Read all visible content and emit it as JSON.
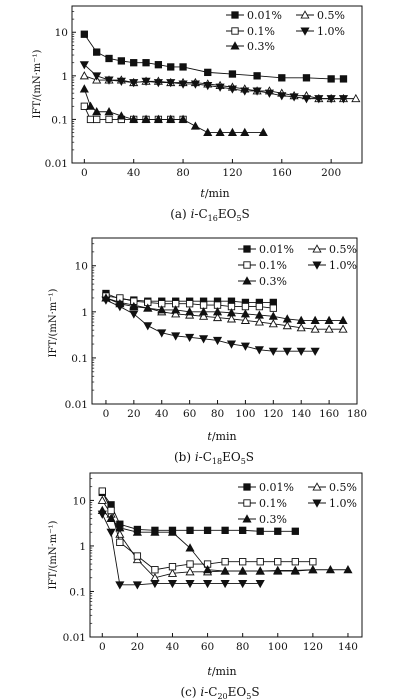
{
  "chart_data": [
    {
      "type": "scatter",
      "caption": "(a) i-C16EO5S",
      "caption_parts": {
        "prefix": "(a) ",
        "italic": "i",
        "mid": "-C",
        "sub1": "16",
        "mid2": "EO",
        "sub2": "5",
        "end": "S"
      },
      "xlabel_italic": "t",
      "xlabel_rest": "/min",
      "ylabel": "IFT/(mN·m⁻¹)",
      "y_scale": "log",
      "xlim": [
        -10,
        225
      ],
      "ylim": [
        0.01,
        40
      ],
      "x_ticks": [
        0,
        40,
        80,
        120,
        160,
        200
      ],
      "y_ticks": [
        0.01,
        0.1,
        1,
        10
      ],
      "y_tick_labels": [
        "0.01",
        "0.1",
        "1",
        "10"
      ],
      "series": [
        {
          "name": "0.01%",
          "marker": "square-filled",
          "x": [
            0,
            10,
            20,
            30,
            40,
            50,
            60,
            70,
            80,
            100,
            120,
            140,
            160,
            180,
            200,
            210
          ],
          "y": [
            9,
            3.5,
            2.5,
            2.2,
            2.0,
            2.0,
            1.8,
            1.6,
            1.6,
            1.2,
            1.1,
            1.0,
            0.9,
            0.9,
            0.85,
            0.85
          ]
        },
        {
          "name": "0.5%",
          "marker": "triangle-up-open",
          "x": [
            0,
            10,
            20,
            30,
            40,
            50,
            60,
            70,
            80,
            90,
            100,
            110,
            120,
            130,
            140,
            150,
            160,
            170,
            180,
            190,
            200,
            210,
            220
          ],
          "y": [
            1.0,
            0.8,
            0.8,
            0.8,
            0.7,
            0.75,
            0.75,
            0.7,
            0.7,
            0.7,
            0.65,
            0.6,
            0.55,
            0.5,
            0.45,
            0.45,
            0.4,
            0.35,
            0.35,
            0.3,
            0.3,
            0.3,
            0.3
          ]
        },
        {
          "name": "0.1%",
          "marker": "square-open",
          "x": [
            0,
            5,
            10,
            20,
            30,
            40,
            50,
            60,
            70,
            80
          ],
          "y": [
            0.2,
            0.1,
            0.1,
            0.1,
            0.1,
            0.1,
            0.1,
            0.1,
            0.1,
            0.1
          ]
        },
        {
          "name": "1.0%",
          "marker": "triangle-down-filled",
          "x": [
            0,
            10,
            20,
            30,
            40,
            50,
            60,
            70,
            80,
            90,
            100,
            110,
            120,
            130,
            140,
            150,
            160,
            170,
            180,
            190,
            200,
            210
          ],
          "y": [
            1.8,
            1.0,
            0.8,
            0.75,
            0.7,
            0.75,
            0.7,
            0.7,
            0.65,
            0.65,
            0.6,
            0.55,
            0.5,
            0.45,
            0.45,
            0.4,
            0.35,
            0.33,
            0.3,
            0.3,
            0.3,
            0.3
          ]
        },
        {
          "name": "0.3%",
          "marker": "triangle-up-filled",
          "x": [
            0,
            5,
            10,
            20,
            30,
            40,
            50,
            60,
            70,
            80,
            90,
            100,
            110,
            120,
            130,
            145
          ],
          "y": [
            0.5,
            0.2,
            0.15,
            0.15,
            0.12,
            0.1,
            0.1,
            0.1,
            0.1,
            0.1,
            0.07,
            0.05,
            0.05,
            0.05,
            0.05,
            0.05
          ]
        }
      ]
    },
    {
      "type": "scatter",
      "caption": "(b) i-C18EO5S",
      "caption_parts": {
        "prefix": "(b) ",
        "italic": "i",
        "mid": "-C",
        "sub1": "18",
        "mid2": "EO",
        "sub2": "5",
        "end": "S"
      },
      "xlabel_italic": "t",
      "xlabel_rest": "/min",
      "ylabel": "IFT/(mN·m⁻¹)",
      "y_scale": "log",
      "xlim": [
        -10,
        180
      ],
      "ylim": [
        0.01,
        40
      ],
      "x_ticks": [
        0,
        20,
        40,
        60,
        80,
        100,
        120,
        140,
        160,
        180
      ],
      "y_ticks": [
        0.01,
        0.1,
        1,
        10
      ],
      "y_tick_labels": [
        "0.01",
        "0.1",
        "1",
        "10"
      ],
      "series": [
        {
          "name": "0.01%",
          "marker": "square-filled",
          "x": [
            0,
            10,
            20,
            30,
            40,
            50,
            60,
            70,
            80,
            90,
            100,
            110,
            120
          ],
          "y": [
            2.5,
            1.9,
            1.8,
            1.7,
            1.7,
            1.7,
            1.7,
            1.7,
            1.7,
            1.7,
            1.6,
            1.6,
            1.6
          ]
        },
        {
          "name": "0.5%",
          "marker": "triangle-up-open",
          "x": [
            0,
            10,
            20,
            30,
            40,
            50,
            60,
            70,
            80,
            90,
            100,
            110,
            120,
            130,
            140,
            150,
            160,
            170
          ],
          "y": [
            2.0,
            1.6,
            1.4,
            1.2,
            1.0,
            0.9,
            0.85,
            0.8,
            0.75,
            0.7,
            0.65,
            0.6,
            0.55,
            0.5,
            0.45,
            0.42,
            0.42,
            0.42
          ]
        },
        {
          "name": "0.1%",
          "marker": "square-open",
          "x": [
            0,
            10,
            20,
            30,
            40,
            50,
            60,
            70,
            80,
            90,
            100,
            110,
            120
          ],
          "y": [
            2.2,
            2.0,
            1.7,
            1.6,
            1.5,
            1.5,
            1.5,
            1.4,
            1.4,
            1.3,
            1.3,
            1.3,
            1.2
          ]
        },
        {
          "name": "1.0%",
          "marker": "triangle-down-filled",
          "x": [
            0,
            10,
            20,
            30,
            40,
            50,
            60,
            70,
            80,
            90,
            100,
            110,
            120,
            130,
            140,
            150
          ],
          "y": [
            1.8,
            1.3,
            0.9,
            0.5,
            0.35,
            0.3,
            0.28,
            0.26,
            0.24,
            0.2,
            0.18,
            0.15,
            0.14,
            0.14,
            0.14,
            0.14
          ]
        },
        {
          "name": "0.3%",
          "marker": "triangle-up-filled",
          "x": [
            0,
            10,
            20,
            30,
            40,
            50,
            60,
            70,
            80,
            90,
            100,
            110,
            120,
            130,
            140,
            150,
            160,
            170
          ],
          "y": [
            2.0,
            1.5,
            1.3,
            1.2,
            1.1,
            1.1,
            1.0,
            1.0,
            1.0,
            0.95,
            0.9,
            0.85,
            0.8,
            0.7,
            0.65,
            0.65,
            0.65,
            0.65
          ]
        }
      ]
    },
    {
      "type": "scatter",
      "caption": "(c) i-C20EO5S",
      "caption_parts": {
        "prefix": "(c) ",
        "italic": "i",
        "mid": "-C",
        "sub1": "20",
        "mid2": "EO",
        "sub2": "5",
        "end": "S"
      },
      "xlabel_italic": "t",
      "xlabel_rest": "/min",
      "ylabel": "IFT/(mN·m⁻¹)",
      "y_scale": "log",
      "xlim": [
        -7,
        148
      ],
      "ylim": [
        0.01,
        40
      ],
      "x_ticks": [
        0,
        20,
        40,
        60,
        80,
        100,
        120,
        140
      ],
      "y_ticks": [
        0.01,
        0.1,
        1,
        10
      ],
      "y_tick_labels": [
        "0.01",
        "0.1",
        "1",
        "10"
      ],
      "series": [
        {
          "name": "0.01%",
          "marker": "square-filled",
          "x": [
            0,
            5,
            10,
            20,
            30,
            40,
            50,
            60,
            70,
            80,
            90,
            100,
            110
          ],
          "y": [
            15,
            8,
            3,
            2.3,
            2.2,
            2.2,
            2.2,
            2.2,
            2.2,
            2.2,
            2.1,
            2.1,
            2.1
          ]
        },
        {
          "name": "0.5%",
          "marker": "triangle-up-open",
          "x": [
            0,
            5,
            10,
            20,
            30,
            40,
            50,
            60,
            70,
            80,
            90,
            100,
            110,
            120
          ],
          "y": [
            10,
            5,
            1.8,
            0.5,
            0.2,
            0.25,
            0.27,
            0.27,
            0.28,
            0.28,
            0.28,
            0.29,
            0.29,
            0.3
          ]
        },
        {
          "name": "0.1%",
          "marker": "square-open",
          "x": [
            0,
            5,
            10,
            20,
            30,
            40,
            50,
            60,
            70,
            80,
            90,
            100,
            110,
            120
          ],
          "y": [
            16,
            6,
            1.2,
            0.6,
            0.3,
            0.35,
            0.4,
            0.4,
            0.45,
            0.45,
            0.45,
            0.45,
            0.45,
            0.45
          ]
        },
        {
          "name": "1.0%",
          "marker": "triangle-down-filled",
          "x": [
            0,
            5,
            10,
            20,
            30,
            40,
            50,
            60,
            70,
            80,
            90
          ],
          "y": [
            5,
            2,
            0.14,
            0.14,
            0.15,
            0.15,
            0.15,
            0.15,
            0.15,
            0.15,
            0.15
          ]
        },
        {
          "name": "0.3%",
          "marker": "triangle-up-filled",
          "x": [
            0,
            5,
            10,
            20,
            30,
            40,
            50,
            60,
            70,
            80,
            90,
            100,
            110,
            120,
            130,
            140
          ],
          "y": [
            6,
            4,
            2.5,
            2.0,
            2.0,
            2.0,
            0.9,
            0.3,
            0.28,
            0.28,
            0.28,
            0.28,
            0.28,
            0.3,
            0.3,
            0.3
          ]
        }
      ]
    }
  ],
  "colors": {
    "ink": "#111111",
    "background": "#ffffff"
  }
}
